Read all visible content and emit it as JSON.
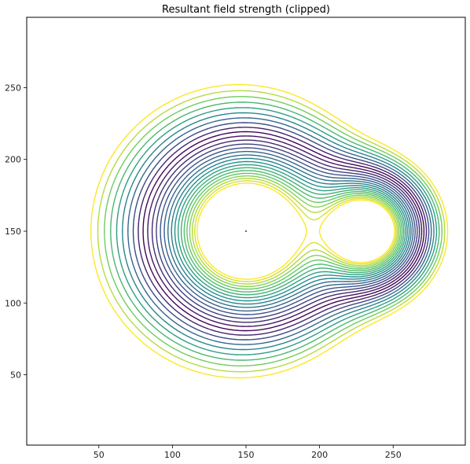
{
  "chart_data": {
    "type": "contour",
    "title": "Resultant field strength (clipped)",
    "xlabel": "",
    "ylabel": "",
    "xlim": [
      1,
      299
    ],
    "ylim": [
      1,
      299
    ],
    "xticks": [
      50,
      100,
      150,
      200,
      250
    ],
    "yticks": [
      50,
      100,
      150,
      200,
      250
    ],
    "grid": false,
    "legend": "none",
    "colormap": "viridis",
    "sources": [
      {
        "x": 150,
        "y": 150
      },
      {
        "x": 230,
        "y": 150
      }
    ],
    "colormap_stops": [
      "#440154",
      "#3b528b",
      "#21918c",
      "#5ec962",
      "#fde725"
    ],
    "clip_color": "#fde725"
  }
}
